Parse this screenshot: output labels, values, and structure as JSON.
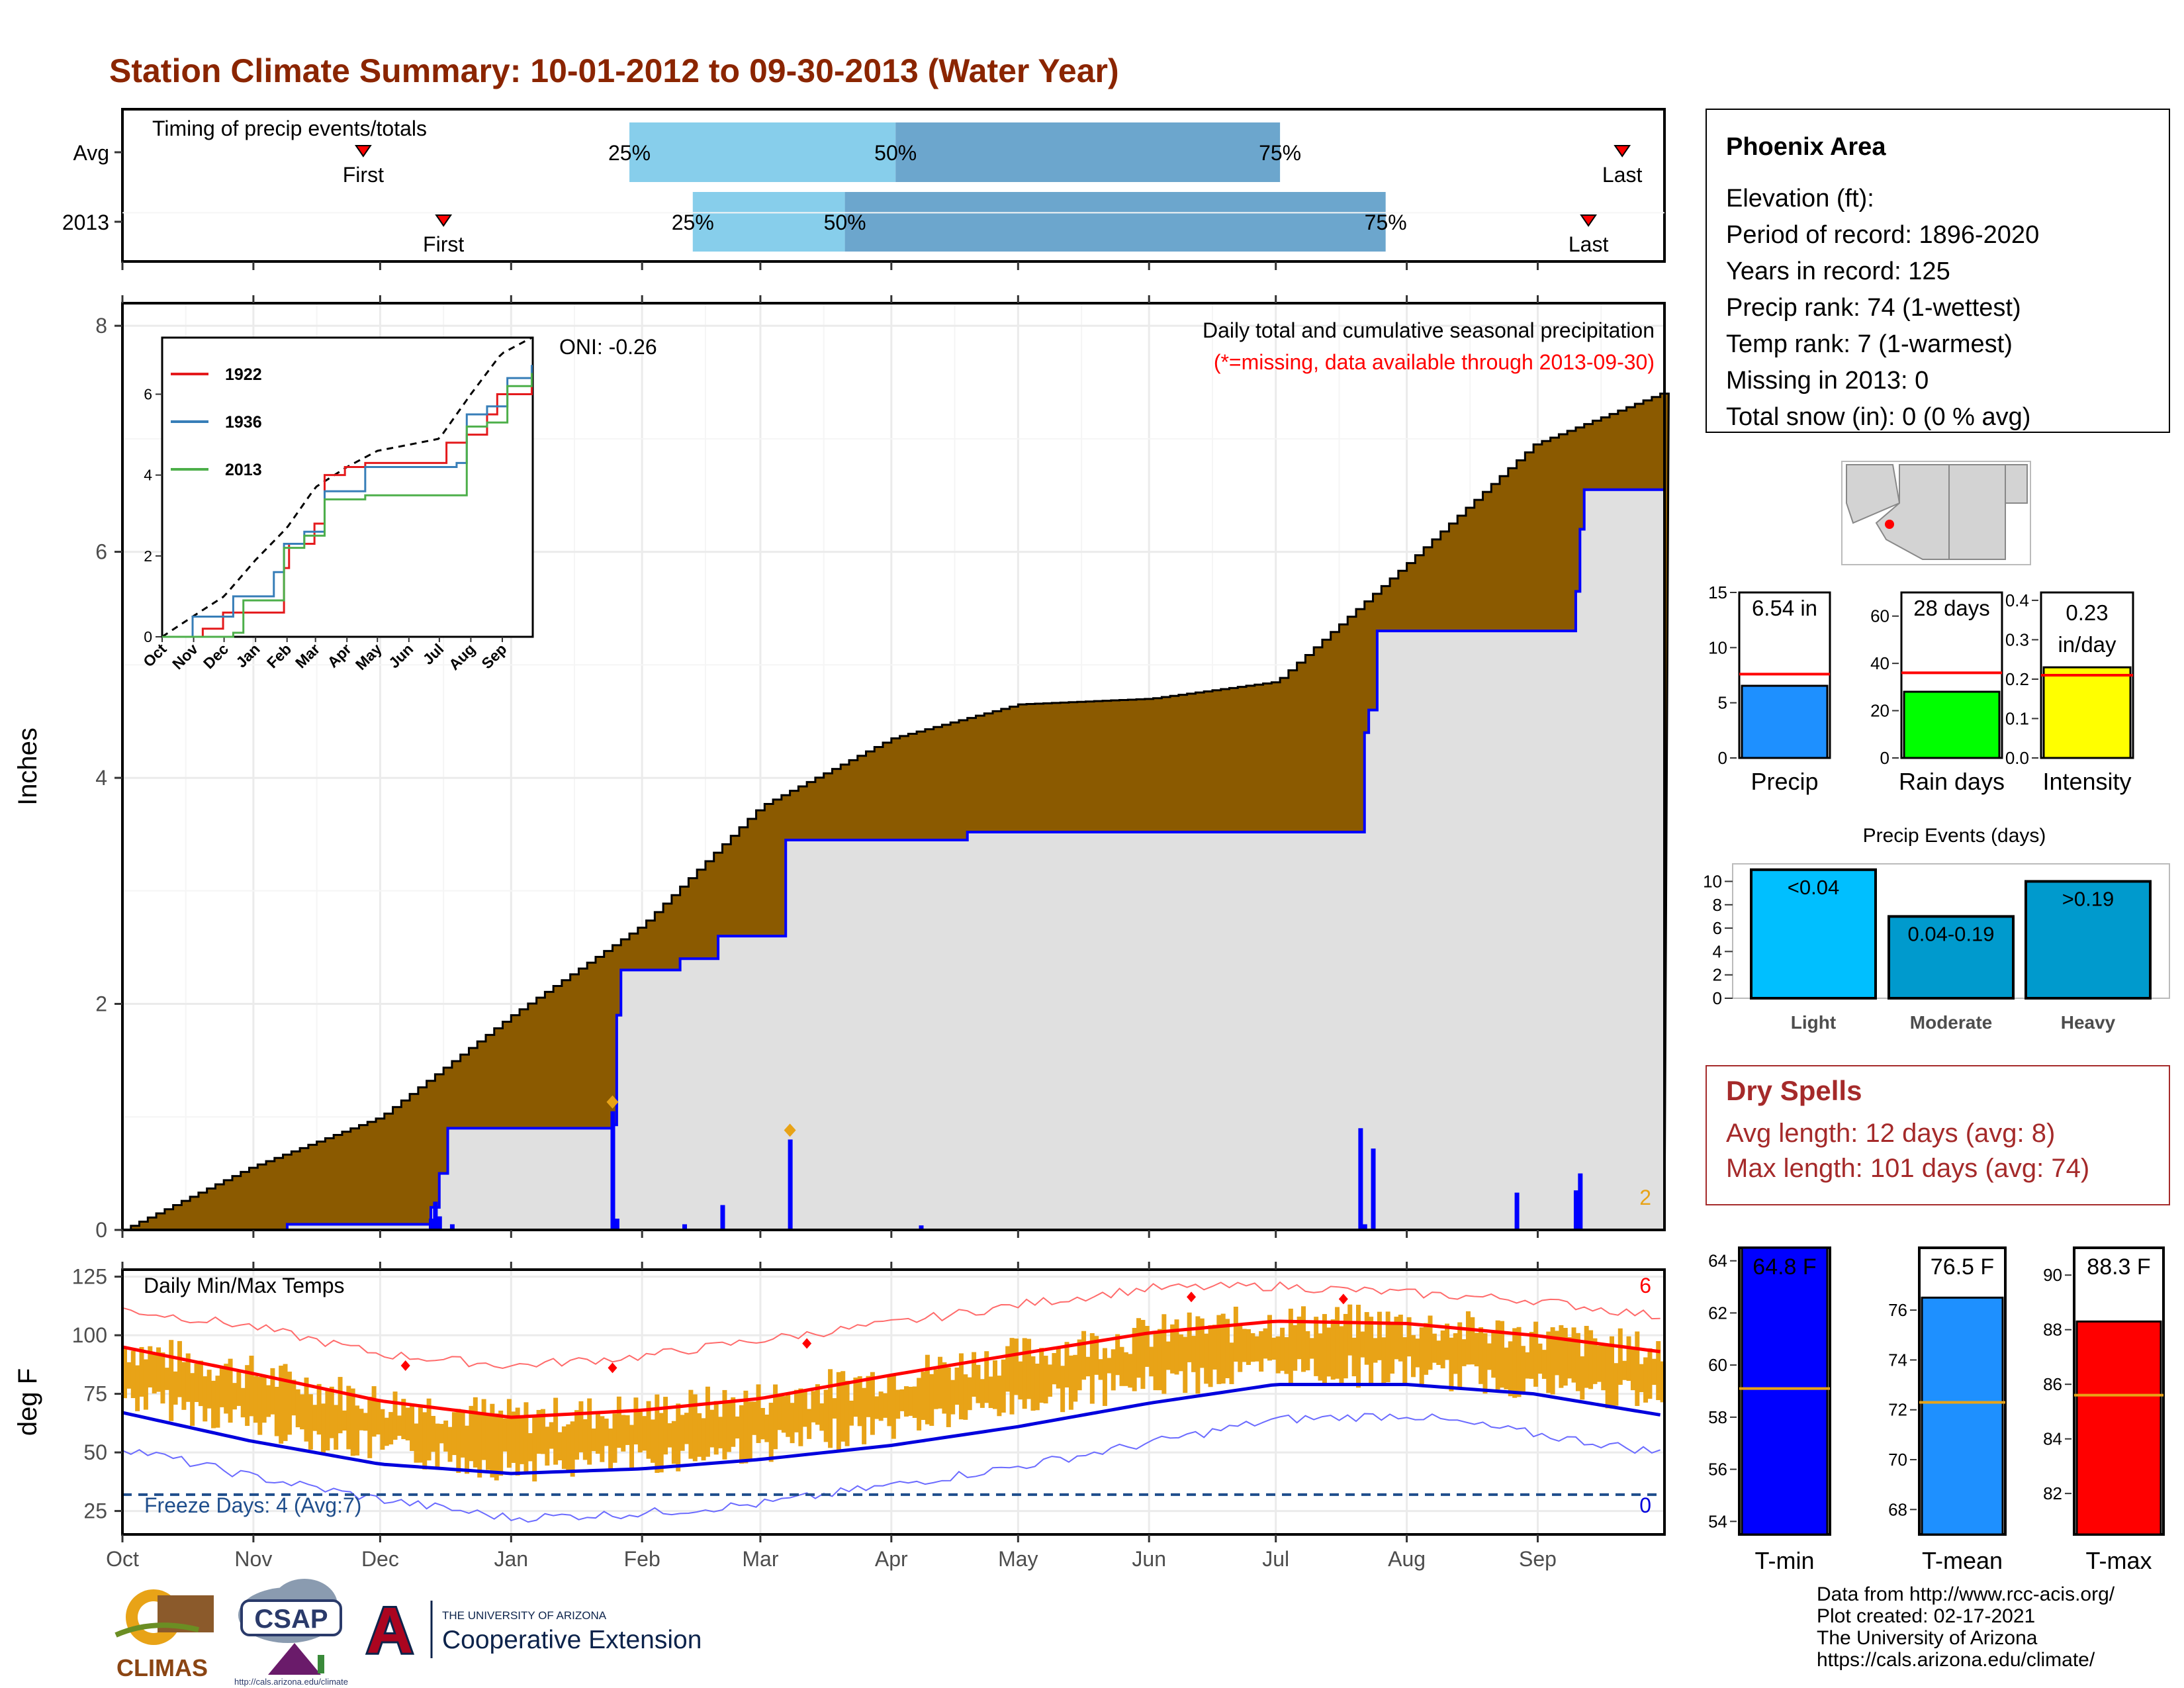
{
  "title": "Station Climate Summary: 10-01-2012 to 09-30-2013 (Water Year)",
  "colors": {
    "title": "#8B2500",
    "brown": "#8B5A00",
    "cum_gray": "#e0e0e0",
    "daily_blue": "#0000ff",
    "light_blue": "#87CEEB",
    "mid_blue": "#6CA6CD",
    "orange": "#E8A317",
    "tmax_line": "#ff0000",
    "tmin_line": "#0000dd",
    "freeze_line": "#1f4e8c",
    "dry_spell": "#A52A2A"
  },
  "months": [
    "Oct",
    "Nov",
    "Dec",
    "Jan",
    "Feb",
    "Mar",
    "Apr",
    "May",
    "Jun",
    "Jul",
    "Aug",
    "Sep"
  ],
  "timing": {
    "label": "Timing of precip events/totals",
    "rows": [
      {
        "name": "Avg",
        "first": "First",
        "last": "Last",
        "q25": "25%",
        "q50": "50%",
        "q75": "75%",
        "first_day": 57,
        "q25_day": 120,
        "q50_day": 183,
        "q75_day": 274,
        "last_day": 355
      },
      {
        "name": "2013",
        "first": "First",
        "last": "Last",
        "q25": "25%",
        "q50": "50%",
        "q75": "75%",
        "first_day": 76,
        "q25_day": 135,
        "q50_day": 171,
        "q75_day": 299,
        "last_day": 347
      }
    ]
  },
  "precip_panel": {
    "ylabel": "Inches",
    "yticks": [
      "0",
      "2",
      "4",
      "6",
      "8"
    ],
    "caption1": "Daily total and cumulative seasonal precipitation",
    "caption2": "(*=missing, data available through 2013-09-30)",
    "oni": "ONI: -0.26",
    "corner_count": "2"
  },
  "inset": {
    "series": [
      {
        "name": "1922",
        "color": "#e41a1c"
      },
      {
        "name": "1936",
        "color": "#377eb8"
      },
      {
        "name": "2013",
        "color": "#4daf4a"
      }
    ],
    "yticks": [
      "0",
      "2",
      "4",
      "6"
    ],
    "xticks": [
      "Oct",
      "Nov",
      "Dec",
      "Jan",
      "Feb",
      "Mar",
      "Apr",
      "May",
      "Jun",
      "Jul",
      "Aug",
      "Sep"
    ]
  },
  "temp_panel": {
    "ylabel": "deg F",
    "yticks": [
      "25",
      "50",
      "75",
      "100",
      "125"
    ],
    "label": "Daily Min/Max Temps",
    "freeze": "Freeze Days: 4 (Avg:7)",
    "count_hi": "6",
    "count_lo": "0"
  },
  "info": {
    "station": "Phoenix Area",
    "lines": [
      "Elevation (ft):",
      "Period of record: 1896-2020",
      "Years in record: 125",
      "Precip rank: 74 (1-wettest)",
      "Temp rank: 7 (1-warmest)",
      "Missing in 2013: 0",
      "Total snow (in): 0 (0 % avg)"
    ]
  },
  "mini_bars": [
    {
      "name": "Precip",
      "value_label": "6.54 in",
      "value": 6.54,
      "avg": 7.6,
      "max": 15,
      "ticks": [
        "0",
        "5",
        "10",
        "15"
      ],
      "color": "#1E90FF"
    },
    {
      "name": "Rain days",
      "value_label": "28 days",
      "value": 28,
      "avg": 36,
      "max": 70,
      "ticks": [
        "0",
        "20",
        "40",
        "60"
      ],
      "color": "#00ff00"
    },
    {
      "name": "Intensity",
      "value_label": "0.23 in/day",
      "value": 0.23,
      "avg": 0.21,
      "max": 0.42,
      "ticks": [
        "0.0",
        "0.1",
        "0.2",
        "0.3",
        "0.4"
      ],
      "color": "#ffff00"
    }
  ],
  "events": {
    "title": "Precip Events (days)",
    "yticks": [
      "0",
      "2",
      "4",
      "6",
      "8",
      "10"
    ],
    "bars": [
      {
        "name": "Light",
        "label": "<0.04",
        "value": 11,
        "color": "#00BFFF"
      },
      {
        "name": "Moderate",
        "label": "0.04-0.19",
        "value": 7,
        "color": "#009ACD"
      },
      {
        "name": "Heavy",
        "label": ">0.19",
        "value": 10,
        "color": "#009ACD"
      }
    ]
  },
  "dry_spells": {
    "title": "Dry Spells",
    "avg": "Avg length: 12 days (avg: 8)",
    "max": "Max length: 101 days (avg: 74)"
  },
  "temp_bars": [
    {
      "name": "T-min",
      "value_label": "64.8 F",
      "value": 64.8,
      "avg": 59.1,
      "ymin": 53.5,
      "ymax": 64.5,
      "ticks": [
        "54",
        "56",
        "58",
        "60",
        "62",
        "64"
      ],
      "color": "#0000ff"
    },
    {
      "name": "T-mean",
      "value_label": "76.5 F",
      "value": 76.5,
      "avg": 72.3,
      "ymin": 67,
      "ymax": 78.5,
      "ticks": [
        "68",
        "70",
        "72",
        "74",
        "76"
      ],
      "color": "#1E90FF"
    },
    {
      "name": "T-max",
      "value_label": "88.3 F",
      "value": 88.3,
      "avg": 85.6,
      "ymin": 80.5,
      "ymax": 91,
      "ticks": [
        "82",
        "84",
        "86",
        "88",
        "90"
      ],
      "color": "#ff0000"
    }
  ],
  "footer": {
    "lines": [
      "Data from http://www.rcc-acis.org/",
      "Plot created: 02-17-2021",
      "The University of Arizona",
      "https://cals.arizona.edu/climate/"
    ],
    "climas": "CLIMAS",
    "csap": "CSAP",
    "csap_url": "http://cals.arizona.edu/climate",
    "ua_small": "THE UNIVERSITY OF ARIZONA",
    "ua_big": "Cooperative Extension",
    "ua_letter": "A"
  },
  "chart_data": {
    "type": "area",
    "title": "Daily total and cumulative seasonal precipitation",
    "ylabel": "Inches",
    "ylim": [
      0,
      8.2
    ],
    "x_unit": "day of water year (0 = Oct 1)",
    "avg_cumulative": {
      "x": [
        0,
        30,
        61,
        92,
        123,
        151,
        182,
        212,
        243,
        273,
        304,
        334,
        364
      ],
      "y": [
        0,
        0.55,
        1.0,
        1.9,
        2.7,
        3.75,
        4.35,
        4.65,
        4.7,
        4.85,
        5.9,
        6.95,
        7.4
      ]
    },
    "cumulative_2013": {
      "x": [
        0,
        39,
        72,
        73,
        75,
        77,
        116,
        117,
        118,
        132,
        141,
        157,
        180,
        200,
        250,
        293,
        294,
        295,
        297,
        330,
        344,
        345,
        346,
        364
      ],
      "y": [
        0,
        0.05,
        0.05,
        0.2,
        0.5,
        0.9,
        0.93,
        1.9,
        2.3,
        2.4,
        2.6,
        3.45,
        3.45,
        3.52,
        3.52,
        3.52,
        4.4,
        4.6,
        5.3,
        5.3,
        5.65,
        6.2,
        6.55,
        6.55
      ]
    },
    "daily_2013": {
      "x": [
        73,
        74,
        75,
        78,
        116,
        117,
        133,
        142,
        158,
        189,
        293,
        294,
        296,
        330,
        344,
        345
      ],
      "y": [
        0.1,
        0.25,
        0.12,
        0.05,
        1.05,
        0.1,
        0.05,
        0.22,
        0.8,
        0.04,
        0.9,
        0.05,
        0.72,
        0.33,
        0.35,
        0.5
      ]
    },
    "temps": {
      "x": [
        0,
        30,
        61,
        92,
        123,
        151,
        182,
        212,
        243,
        273,
        304,
        334,
        364
      ],
      "tmax_avg": [
        95,
        84,
        72,
        65,
        68,
        73,
        83,
        92,
        101,
        106,
        105,
        100,
        93
      ],
      "tmin_avg": [
        67,
        55,
        45,
        41,
        43,
        47,
        53,
        61,
        71,
        79,
        79,
        75,
        66
      ],
      "tmax_rec": [
        111,
        104,
        92,
        87,
        91,
        98,
        105,
        113,
        120,
        121,
        118,
        115,
        108
      ],
      "tmin_rec": [
        52,
        40,
        30,
        22,
        24,
        28,
        36,
        44,
        54,
        64,
        66,
        58,
        50
      ],
      "freeze": 32,
      "ylim": [
        15,
        128
      ]
    }
  }
}
